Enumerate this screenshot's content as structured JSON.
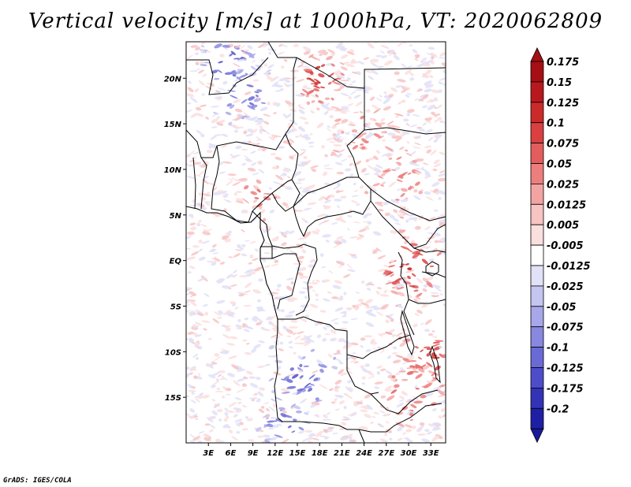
{
  "title": "Vertical velocity [m/s] at 1000hPa, VT: 2020062809",
  "credit": "GrADS: IGES/COLA",
  "map": {
    "lon_range": [
      0,
      35
    ],
    "lat_range": [
      -20,
      24
    ],
    "lat_ticks": [
      {
        "value": 20,
        "label": "20N"
      },
      {
        "value": 15,
        "label": "15N"
      },
      {
        "value": 10,
        "label": "10N"
      },
      {
        "value": 5,
        "label": "5N"
      },
      {
        "value": 0,
        "label": "EQ"
      },
      {
        "value": -5,
        "label": "5S"
      },
      {
        "value": -10,
        "label": "10S"
      },
      {
        "value": -15,
        "label": "15S"
      }
    ],
    "lon_ticks": [
      {
        "value": 3,
        "label": "3E"
      },
      {
        "value": 6,
        "label": "6E"
      },
      {
        "value": 9,
        "label": "9E"
      },
      {
        "value": 12,
        "label": "12E"
      },
      {
        "value": 15,
        "label": "15E"
      },
      {
        "value": 18,
        "label": "18E"
      },
      {
        "value": 21,
        "label": "21E"
      },
      {
        "value": 24,
        "label": "24E"
      },
      {
        "value": 27,
        "label": "27E"
      },
      {
        "value": 30,
        "label": "30E"
      },
      {
        "value": 33,
        "label": "33E"
      }
    ]
  },
  "colorbar": {
    "levels": [
      {
        "label": "0.175",
        "color": "#a50f15"
      },
      {
        "label": "0.15",
        "color": "#b8191e"
      },
      {
        "label": "0.125",
        "color": "#cb2a2a"
      },
      {
        "label": "0.1",
        "color": "#d94040"
      },
      {
        "label": "0.075",
        "color": "#e35d5d"
      },
      {
        "label": "0.05",
        "color": "#ec7e7e"
      },
      {
        "label": "0.025",
        "color": "#f4a3a3"
      },
      {
        "label": "0.0125",
        "color": "#f8c3c3"
      },
      {
        "label": "0.005",
        "color": "#fbdede"
      },
      {
        "label": "-0.005",
        "color": "#ffffff"
      },
      {
        "label": "-0.0125",
        "color": "#e1e1f8"
      },
      {
        "label": "-0.025",
        "color": "#c5c5f2"
      },
      {
        "label": "-0.05",
        "color": "#a7a7ea"
      },
      {
        "label": "-0.075",
        "color": "#8888e1"
      },
      {
        "label": "-0.1",
        "color": "#6a6ad6"
      },
      {
        "label": "-0.125",
        "color": "#4d4dca"
      },
      {
        "label": "-0.175",
        "color": "#3333b8"
      },
      {
        "label": "-0.2",
        "color": "#1f1fa5"
      }
    ],
    "top_arrow_color": "#a50f15",
    "bottom_arrow_color": "#1a1a9e"
  }
}
